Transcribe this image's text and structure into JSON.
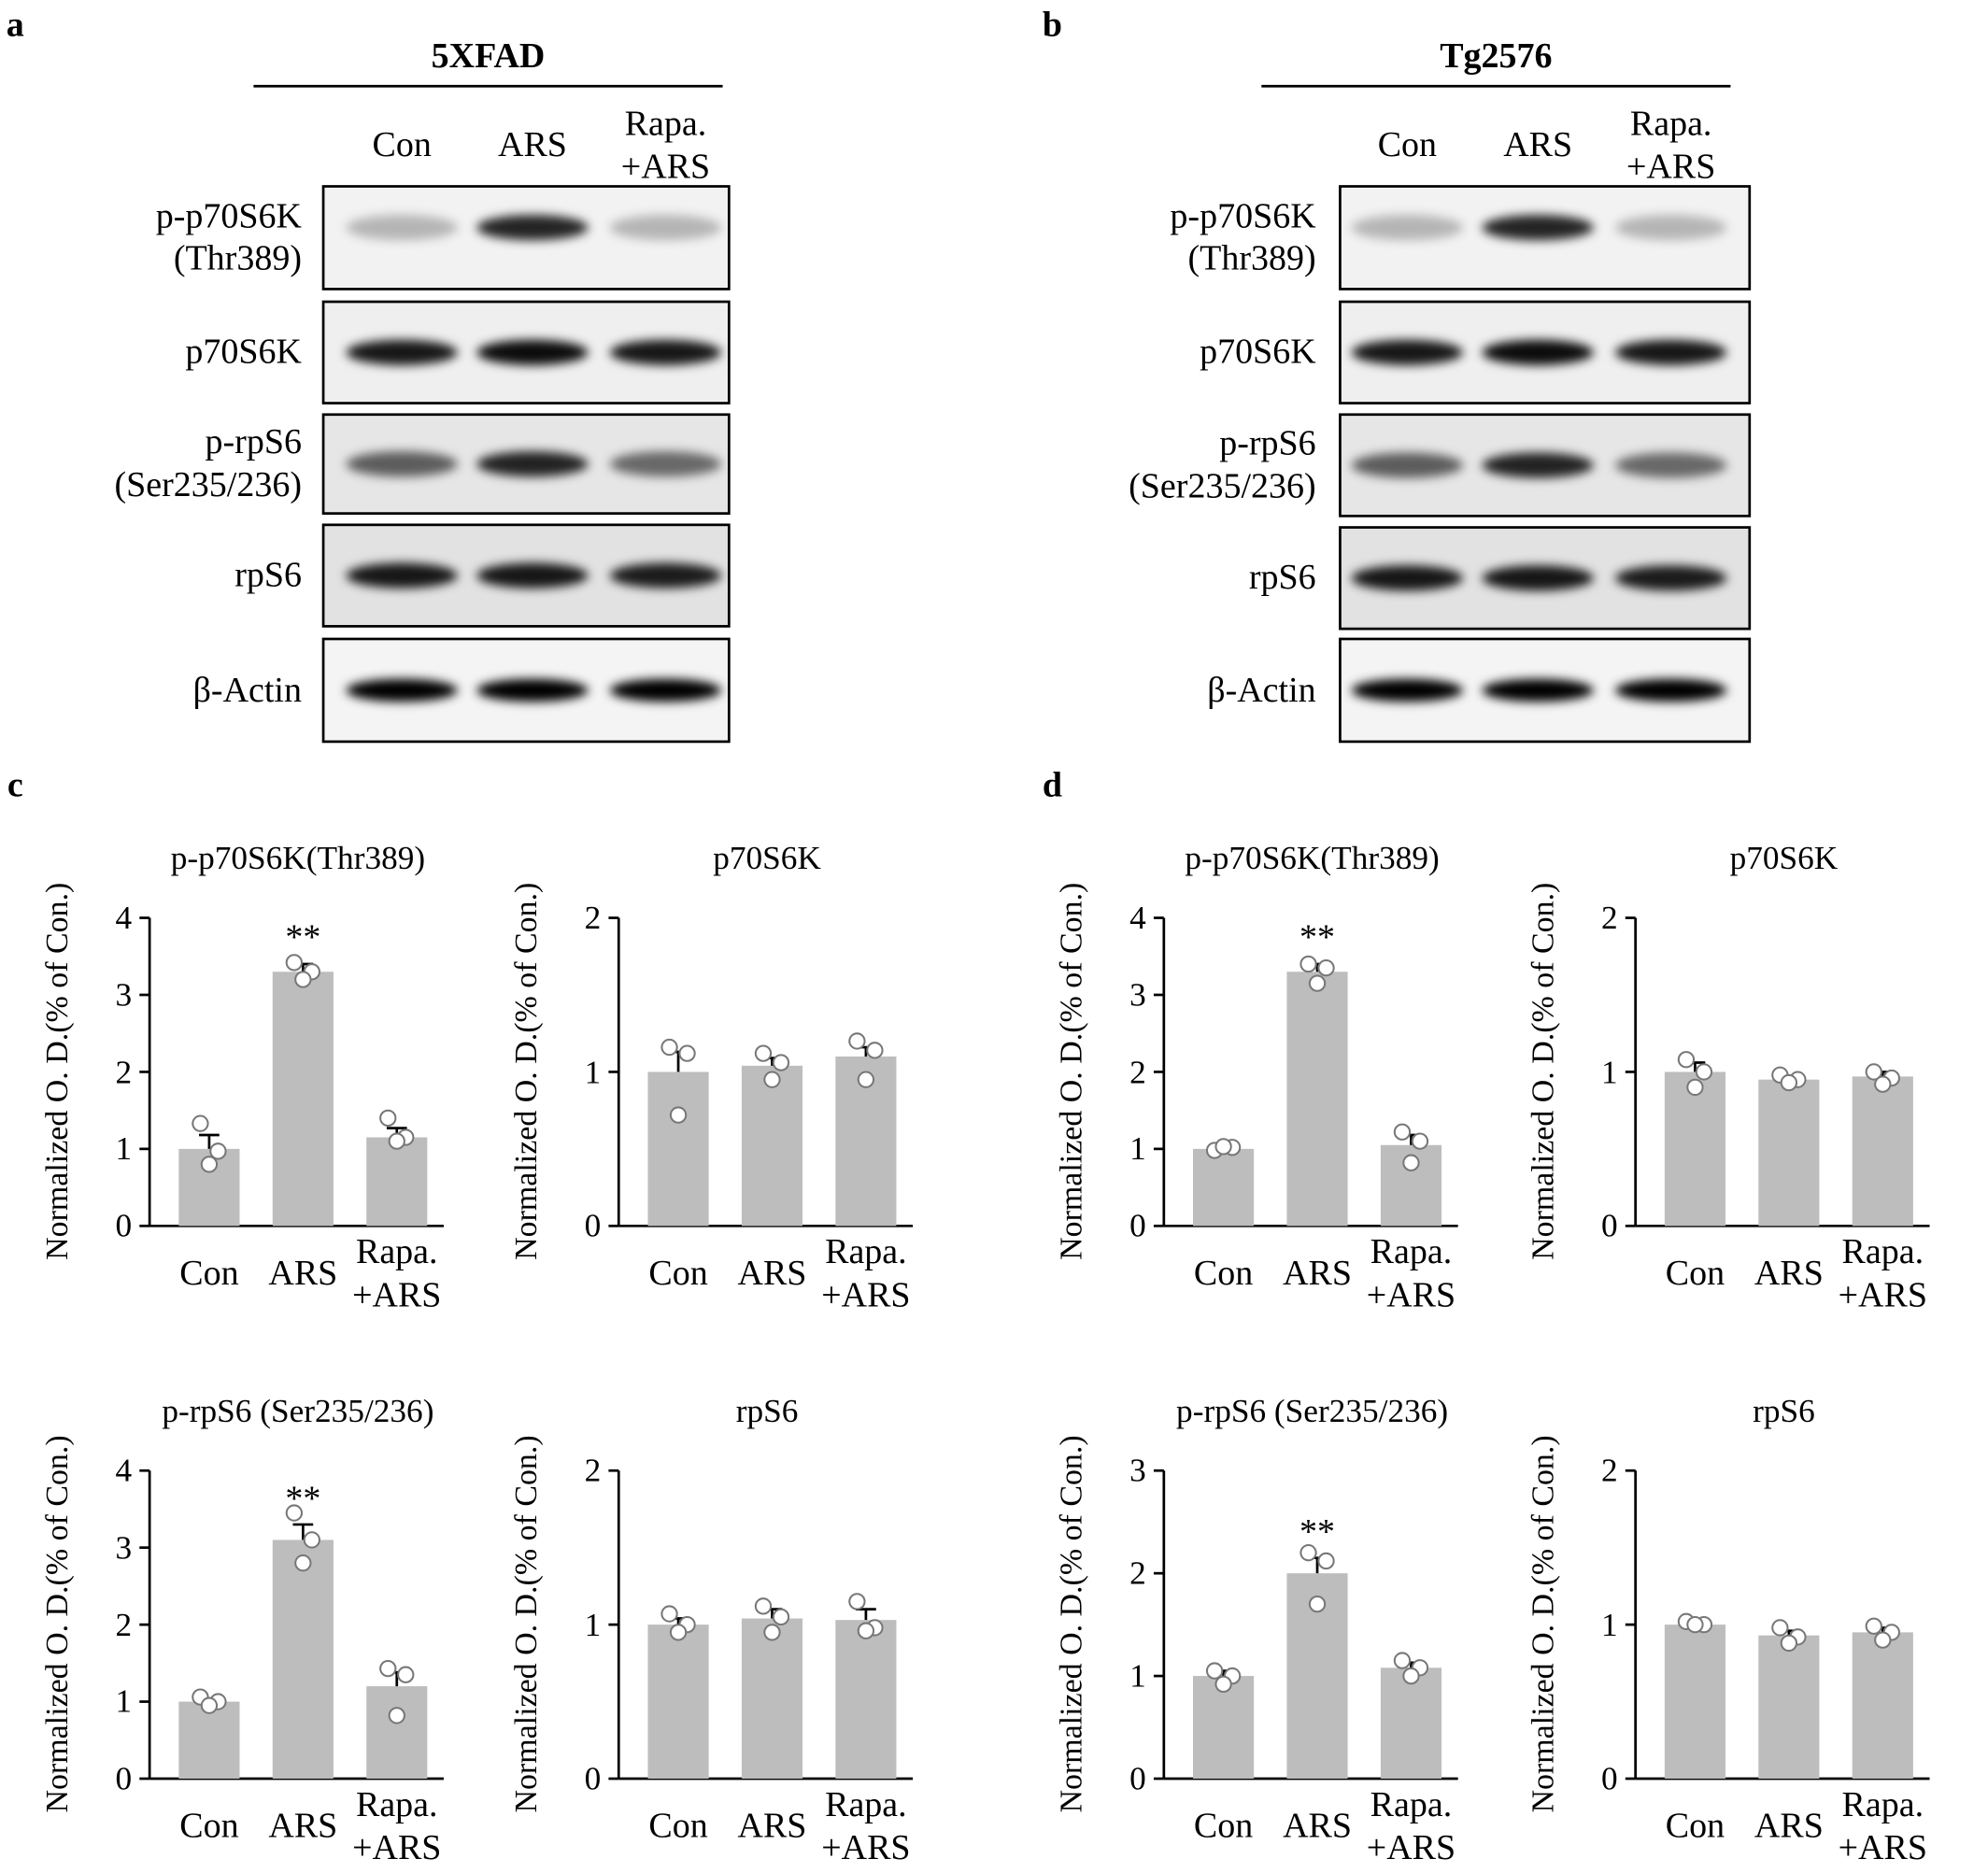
{
  "panels": [
    {
      "letter": "a",
      "title": "5XFAD",
      "lanes": [
        "Con",
        "ARS",
        "Rapa.\n+ARS"
      ],
      "rows": [
        "p-p70S6K\n(Thr389)",
        "p70S6K",
        "p-rpS6\n(Ser235/236)",
        "rpS6",
        "β-Actin"
      ]
    },
    {
      "letter": "b",
      "title": "Tg2576",
      "lanes": [
        "Con",
        "ARS",
        "Rapa.\n+ARS"
      ],
      "rows": [
        "p-p70S6K\n(Thr389)",
        "p70S6K",
        "p-rpS6\n(Ser235/236)",
        "rpS6",
        "β-Actin"
      ]
    }
  ],
  "chart_panels": [
    {
      "letter": "c"
    },
    {
      "letter": "d"
    }
  ],
  "chart_data": [
    {
      "type": "bar",
      "title": "p-p70S6K(Thr389)",
      "ylabel": "Normalized O. D.(% of Con.)",
      "categories": [
        "Con",
        "ARS",
        "Rapa.\n+ARS"
      ],
      "color": "#bdbdbd",
      "values": [
        1.0,
        3.3,
        1.15
      ],
      "errors": [
        0.18,
        0.1,
        0.12
      ],
      "points": [
        [
          1.33,
          0.97,
          0.8
        ],
        [
          3.42,
          3.3,
          3.2
        ],
        [
          1.4,
          1.15,
          1.1
        ]
      ],
      "significance": [
        null,
        "**",
        null
      ],
      "ylim": [
        0,
        4
      ],
      "yticks": [
        0,
        1,
        2,
        3,
        4
      ]
    },
    {
      "type": "bar",
      "title": "p70S6K",
      "ylabel": "Normalized O. D.(% of Con.)",
      "categories": [
        "Con",
        "ARS",
        "Rapa.\n+ARS"
      ],
      "color": "#bdbdbd",
      "values": [
        1.0,
        1.04,
        1.1
      ],
      "errors": [
        0.13,
        0.05,
        0.06
      ],
      "points": [
        [
          1.16,
          1.12,
          0.72
        ],
        [
          1.12,
          1.06,
          0.95
        ],
        [
          1.2,
          1.14,
          0.95
        ]
      ],
      "significance": [
        null,
        null,
        null
      ],
      "ylim": [
        0,
        2
      ],
      "yticks": [
        0,
        1,
        2
      ]
    },
    {
      "type": "bar",
      "title": "p-rpS6 (Ser235/236)",
      "ylabel": "Normalized O. D.(% of Con.)",
      "categories": [
        "Con",
        "ARS",
        "Rapa.\n+ARS"
      ],
      "color": "#bdbdbd",
      "values": [
        1.0,
        3.1,
        1.2
      ],
      "errors": [
        0.03,
        0.2,
        0.18
      ],
      "points": [
        [
          1.06,
          1.0,
          0.95
        ],
        [
          3.45,
          3.1,
          2.8
        ],
        [
          1.43,
          1.35,
          0.82
        ]
      ],
      "significance": [
        null,
        "**",
        null
      ],
      "ylim": [
        0,
        4
      ],
      "yticks": [
        0,
        1,
        2,
        3,
        4
      ]
    },
    {
      "type": "bar",
      "title": "rpS6",
      "ylabel": "Normalized O. D.(% of Con.)",
      "categories": [
        "Con",
        "ARS",
        "Rapa.\n+ARS"
      ],
      "color": "#bdbdbd",
      "values": [
        1.0,
        1.04,
        1.03
      ],
      "errors": [
        0.04,
        0.06,
        0.07
      ],
      "points": [
        [
          1.07,
          1.0,
          0.95
        ],
        [
          1.12,
          1.05,
          0.95
        ],
        [
          1.15,
          0.98,
          0.96
        ]
      ],
      "significance": [
        null,
        null,
        null
      ],
      "ylim": [
        0,
        2
      ],
      "yticks": [
        0,
        1,
        2
      ]
    },
    {
      "type": "bar",
      "title": "p-p70S6K(Thr389)",
      "ylabel": "Normalized O. D.(% of Con.)",
      "categories": [
        "Con",
        "ARS",
        "Rapa.\n+ARS"
      ],
      "color": "#bdbdbd",
      "values": [
        1.0,
        3.3,
        1.05
      ],
      "errors": [
        0.02,
        0.1,
        0.13
      ],
      "points": [
        [
          0.98,
          1.02,
          1.03
        ],
        [
          3.4,
          3.35,
          3.15
        ],
        [
          1.22,
          1.1,
          0.82
        ]
      ],
      "significance": [
        null,
        "**",
        null
      ],
      "ylim": [
        0,
        4
      ],
      "yticks": [
        0,
        1,
        2,
        3,
        4
      ]
    },
    {
      "type": "bar",
      "title": "p70S6K",
      "ylabel": "Normalized O. D.(% of Con.)",
      "categories": [
        "Con",
        "ARS",
        "Rapa.\n+ARS"
      ],
      "color": "#bdbdbd",
      "values": [
        1.0,
        0.95,
        0.97
      ],
      "errors": [
        0.06,
        0.02,
        0.03
      ],
      "points": [
        [
          1.08,
          1.0,
          0.9
        ],
        [
          0.98,
          0.95,
          0.93
        ],
        [
          1.0,
          0.96,
          0.92
        ]
      ],
      "significance": [
        null,
        null,
        null
      ],
      "ylim": [
        0,
        2
      ],
      "yticks": [
        0,
        1,
        2
      ]
    },
    {
      "type": "bar",
      "title": "p-rpS6 (Ser235/236)",
      "ylabel": "Normalized O. D.(% of Con.)",
      "categories": [
        "Con",
        "ARS",
        "Rapa.\n+ARS"
      ],
      "color": "#bdbdbd",
      "values": [
        1.0,
        2.0,
        1.08
      ],
      "errors": [
        0.05,
        0.15,
        0.05
      ],
      "points": [
        [
          1.05,
          1.0,
          0.92
        ],
        [
          2.2,
          2.12,
          1.7
        ],
        [
          1.15,
          1.08,
          1.0
        ]
      ],
      "significance": [
        null,
        "**",
        null
      ],
      "ylim": [
        0,
        3
      ],
      "yticks": [
        0,
        1,
        2,
        3
      ]
    },
    {
      "type": "bar",
      "title": "rpS6",
      "ylabel": "Normalized O. D.(% of Con.)",
      "categories": [
        "Con",
        "ARS",
        "Rapa.\n+ARS"
      ],
      "color": "#bdbdbd",
      "values": [
        1.0,
        0.93,
        0.95
      ],
      "errors": [
        0.01,
        0.03,
        0.03
      ],
      "points": [
        [
          1.02,
          1.0,
          1.0
        ],
        [
          0.98,
          0.92,
          0.88
        ],
        [
          0.99,
          0.95,
          0.9
        ]
      ],
      "significance": [
        null,
        null,
        null
      ],
      "ylim": [
        0,
        2
      ],
      "yticks": [
        0,
        1,
        2
      ]
    }
  ]
}
